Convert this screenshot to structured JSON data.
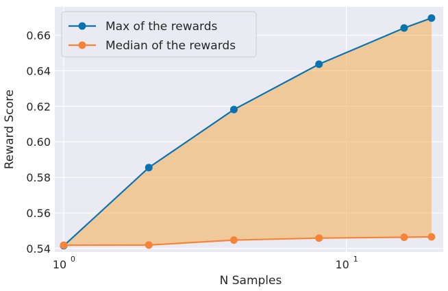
{
  "chart_data": {
    "type": "line",
    "title": "",
    "xlabel": "N Samples",
    "ylabel": "Reward Score",
    "xscale": "log",
    "xlim": [
      0.93,
      22
    ],
    "ylim": [
      0.538,
      0.676
    ],
    "x": [
      1,
      2,
      4,
      8,
      16,
      20
    ],
    "xticks": [
      {
        "value": 1,
        "base": "10",
        "exp": "0"
      },
      {
        "value": 10,
        "base": "10",
        "exp": "1"
      }
    ],
    "yticks": [
      0.54,
      0.56,
      0.58,
      0.6,
      0.62,
      0.64,
      0.66
    ],
    "ytick_labels": [
      "0.54",
      "0.56",
      "0.58",
      "0.60",
      "0.62",
      "0.64",
      "0.66"
    ],
    "grid": true,
    "legend_position": "top-left",
    "fill_between": {
      "color": "#f5a742",
      "opacity": 0.5
    },
    "series": [
      {
        "name": "Max of the rewards",
        "color": "#0a72b0",
        "values": [
          0.5415,
          0.5855,
          0.6182,
          0.6437,
          0.6641,
          0.6697
        ]
      },
      {
        "name": "Median of the rewards",
        "color": "#f5843a",
        "values": [
          0.5418,
          0.5419,
          0.5447,
          0.5458,
          0.5463,
          0.5465
        ]
      }
    ]
  }
}
